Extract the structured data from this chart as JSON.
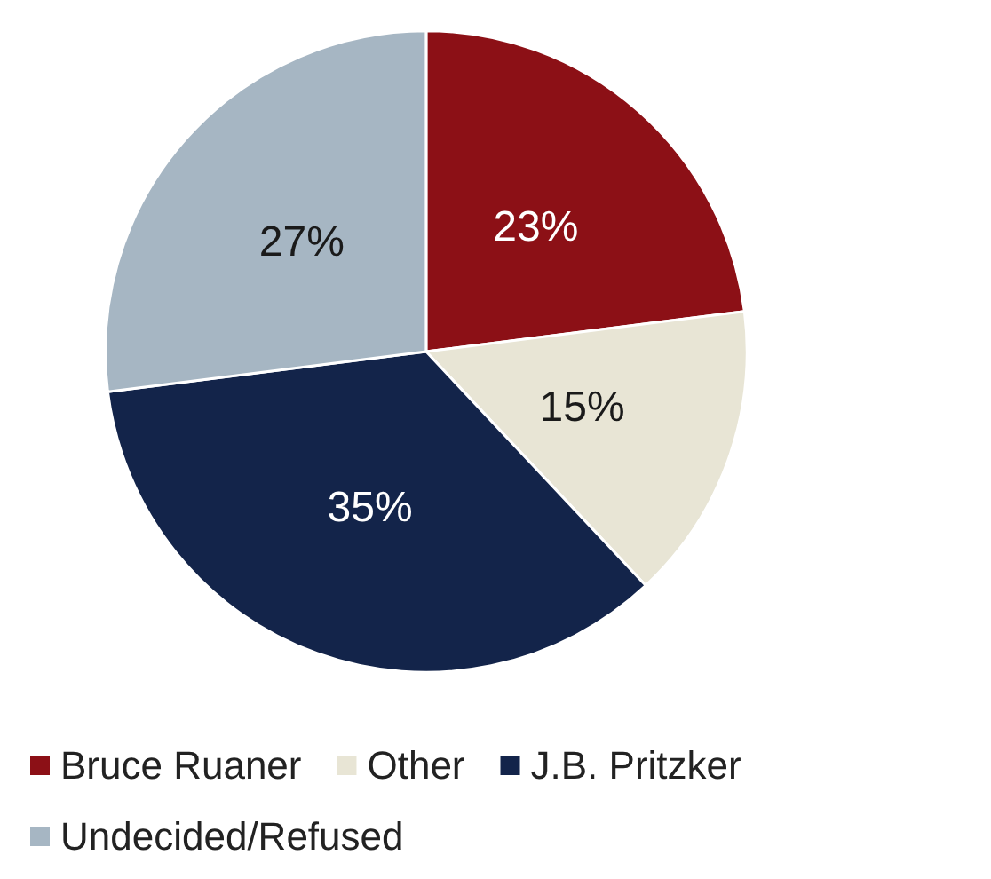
{
  "chart_data": {
    "type": "pie",
    "categories": [
      "Bruce Ruaner",
      "Other",
      "J.B. Pritzker",
      "Undecided/Refused"
    ],
    "values": [
      23,
      15,
      35,
      27
    ],
    "colors": [
      "#8c1016",
      "#e8e5d5",
      "#13244a",
      "#a6b6c3"
    ],
    "value_labels": [
      "23%",
      "15%",
      "35%",
      "27%"
    ],
    "legend": "bottom"
  }
}
